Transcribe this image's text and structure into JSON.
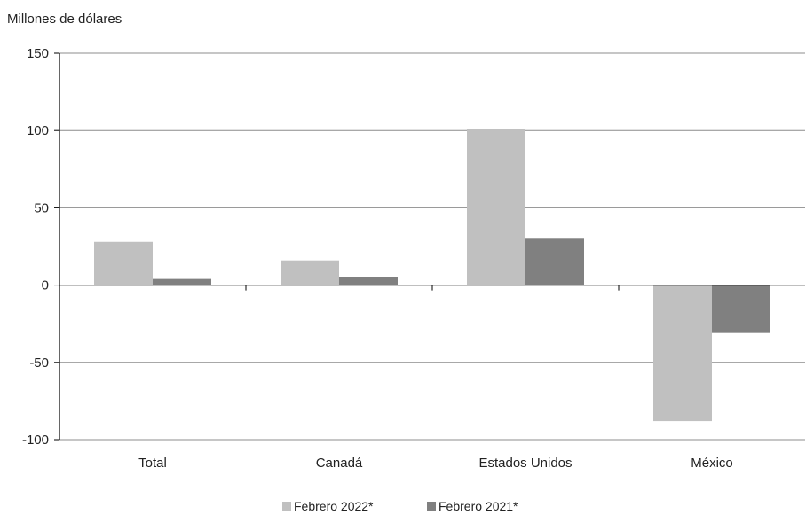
{
  "chart_data": {
    "type": "bar",
    "title": "",
    "ylabel": "Millones de dólares",
    "xlabel": "",
    "ylim": [
      -100,
      150
    ],
    "yticks": [
      150,
      100,
      50,
      0,
      -50,
      -100
    ],
    "grid": true,
    "legend_position": "bottom",
    "categories": [
      "Total",
      "Canadá",
      "Estados Unidos",
      "México"
    ],
    "series": [
      {
        "name": "Febrero 2022*",
        "color": "#c0c0c0",
        "values": [
          28,
          16,
          101,
          -88
        ]
      },
      {
        "name": "Febrero 2021*",
        "color": "#808080",
        "values": [
          4,
          5,
          30,
          -31
        ]
      }
    ]
  }
}
